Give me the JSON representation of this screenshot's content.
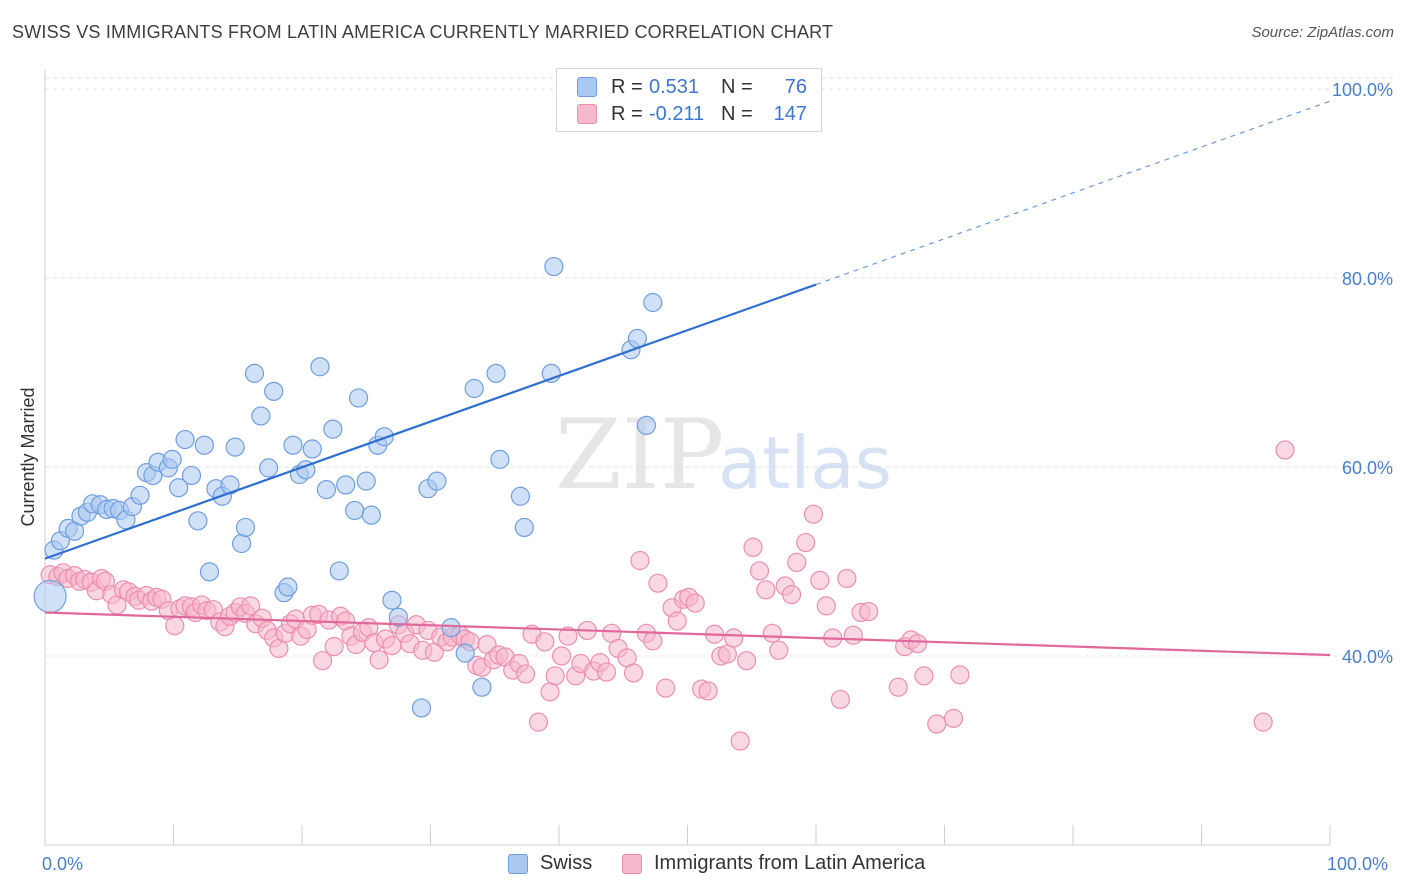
{
  "title": "SWISS VS IMMIGRANTS FROM LATIN AMERICA CURRENTLY MARRIED CORRELATION CHART",
  "source": "Source: ZipAtlas.com",
  "watermark": {
    "zip": "ZIP",
    "atlas": "atlas"
  },
  "legend": {
    "rows": [
      {
        "r_label": "R =",
        "r_value": "0.531",
        "n_label": "N =",
        "n_value": "76"
      },
      {
        "r_label": "R =",
        "r_value": "-0.211",
        "n_label": "N =",
        "n_value": "147"
      }
    ]
  },
  "bottom_legend": {
    "swiss": "Swiss",
    "latin": "Immigrants from Latin America"
  },
  "colors": {
    "swiss_fill": "#aac8f0",
    "swiss_stroke": "#6f9ee0",
    "swiss_line": "#2f6fd0",
    "latin_fill": "#f6b8cc",
    "latin_stroke": "#ec8fae",
    "latin_line": "#e0689a",
    "grid": "#e3e3e3",
    "axis_label": "#4a7fd0"
  },
  "chart_data": {
    "type": "scatter",
    "title": "SWISS VS IMMIGRANTS FROM LATIN AMERICA CURRENTLY MARRIED CORRELATION CHART",
    "xlabel": "",
    "ylabel": "Currently Married",
    "xlim": [
      0,
      100
    ],
    "ylim": [
      20,
      102
    ],
    "x_tick_labels": [
      "0.0%",
      "100.0%"
    ],
    "y_ticks": [
      40,
      60,
      80,
      100
    ],
    "y_tick_labels": [
      "40.0%",
      "60.0%",
      "80.0%",
      "100.0%"
    ],
    "grid": true,
    "legend_position": "top-center",
    "series": [
      {
        "name": "Swiss",
        "r": 0.531,
        "n": 76,
        "trend": {
          "x0": 0,
          "y0": 50.3,
          "x1": 60,
          "y1": 79.3,
          "dashed_to": 100,
          "dashed_y": 98.7
        },
        "points": [
          [
            0.4,
            46.3
          ],
          [
            0.7,
            51.2
          ],
          [
            1.2,
            52.2
          ],
          [
            1.8,
            53.5
          ],
          [
            2.3,
            53.2
          ],
          [
            2.8,
            54.8
          ],
          [
            3.3,
            55.2
          ],
          [
            3.7,
            56.1
          ],
          [
            4.3,
            56.0
          ],
          [
            4.8,
            55.5
          ],
          [
            5.3,
            55.6
          ],
          [
            5.8,
            55.4
          ],
          [
            6.3,
            54.4
          ],
          [
            6.8,
            55.8
          ],
          [
            7.4,
            57.0
          ],
          [
            7.9,
            59.4
          ],
          [
            8.4,
            59.1
          ],
          [
            8.8,
            60.5
          ],
          [
            9.6,
            59.9
          ],
          [
            9.9,
            60.8
          ],
          [
            10.4,
            57.8
          ],
          [
            10.9,
            62.9
          ],
          [
            11.4,
            59.1
          ],
          [
            11.9,
            54.3
          ],
          [
            12.4,
            62.3
          ],
          [
            12.8,
            48.9
          ],
          [
            13.3,
            57.7
          ],
          [
            13.8,
            56.9
          ],
          [
            14.4,
            58.1
          ],
          [
            14.8,
            62.1
          ],
          [
            15.3,
            51.9
          ],
          [
            15.6,
            53.6
          ],
          [
            16.3,
            69.9
          ],
          [
            16.8,
            65.4
          ],
          [
            17.4,
            59.9
          ],
          [
            17.8,
            68.0
          ],
          [
            18.6,
            46.7
          ],
          [
            18.9,
            47.3
          ],
          [
            19.3,
            62.3
          ],
          [
            19.8,
            59.2
          ],
          [
            20.3,
            59.7
          ],
          [
            20.8,
            61.9
          ],
          [
            21.4,
            70.6
          ],
          [
            21.9,
            57.6
          ],
          [
            22.4,
            64.0
          ],
          [
            22.9,
            49.0
          ],
          [
            23.4,
            58.1
          ],
          [
            24.1,
            55.4
          ],
          [
            24.4,
            67.3
          ],
          [
            25.0,
            58.5
          ],
          [
            25.4,
            54.9
          ],
          [
            25.9,
            62.3
          ],
          [
            26.4,
            63.2
          ],
          [
            27.0,
            45.9
          ],
          [
            27.5,
            44.1
          ],
          [
            29.3,
            34.5
          ],
          [
            29.8,
            57.7
          ],
          [
            30.5,
            58.5
          ],
          [
            31.6,
            43.0
          ],
          [
            32.7,
            40.3
          ],
          [
            33.4,
            68.3
          ],
          [
            34.0,
            36.7
          ],
          [
            35.1,
            69.9
          ],
          [
            35.4,
            60.8
          ],
          [
            37.0,
            56.9
          ],
          [
            37.3,
            53.6
          ],
          [
            39.4,
            69.9
          ],
          [
            39.6,
            81.2
          ],
          [
            45.6,
            72.4
          ],
          [
            46.1,
            73.6
          ],
          [
            46.8,
            64.4
          ],
          [
            47.3,
            77.4
          ],
          [
            43.0,
            100.0
          ],
          [
            51.4,
            100.2
          ],
          [
            52.6,
            99.9
          ],
          [
            53.1,
            100.0
          ]
        ]
      },
      {
        "name": "Immigrants from Latin America",
        "r": -0.211,
        "n": 147,
        "trend": {
          "x0": 0,
          "y0": 44.6,
          "x1": 100,
          "y1": 40.1
        },
        "points": [
          [
            0.4,
            48.6
          ],
          [
            1.0,
            48.4
          ],
          [
            1.4,
            48.8
          ],
          [
            1.8,
            48.2
          ],
          [
            2.3,
            48.5
          ],
          [
            2.7,
            47.9
          ],
          [
            3.1,
            48.1
          ],
          [
            3.6,
            47.8
          ],
          [
            4.0,
            46.9
          ],
          [
            4.4,
            48.2
          ],
          [
            4.7,
            47.9
          ],
          [
            5.2,
            46.5
          ],
          [
            5.6,
            45.4
          ],
          [
            6.1,
            47.0
          ],
          [
            6.5,
            46.8
          ],
          [
            7.0,
            46.3
          ],
          [
            7.3,
            45.9
          ],
          [
            7.9,
            46.4
          ],
          [
            8.3,
            45.8
          ],
          [
            8.7,
            46.2
          ],
          [
            9.1,
            46.0
          ],
          [
            9.6,
            44.8
          ],
          [
            10.1,
            43.2
          ],
          [
            10.5,
            45.0
          ],
          [
            10.9,
            45.3
          ],
          [
            11.4,
            45.2
          ],
          [
            11.7,
            44.6
          ],
          [
            12.2,
            45.4
          ],
          [
            12.6,
            44.8
          ],
          [
            13.1,
            44.9
          ],
          [
            13.6,
            43.6
          ],
          [
            14.0,
            43.1
          ],
          [
            14.4,
            44.2
          ],
          [
            14.8,
            44.6
          ],
          [
            15.2,
            45.2
          ],
          [
            15.6,
            44.5
          ],
          [
            16.0,
            45.3
          ],
          [
            16.4,
            43.4
          ],
          [
            16.9,
            44.0
          ],
          [
            17.3,
            42.7
          ],
          [
            17.8,
            41.9
          ],
          [
            18.2,
            40.8
          ],
          [
            18.7,
            42.4
          ],
          [
            19.1,
            43.4
          ],
          [
            19.5,
            43.9
          ],
          [
            19.9,
            42.1
          ],
          [
            20.4,
            42.8
          ],
          [
            20.8,
            44.3
          ],
          [
            21.3,
            44.4
          ],
          [
            21.6,
            39.5
          ],
          [
            22.1,
            43.8
          ],
          [
            22.5,
            41.0
          ],
          [
            23.0,
            44.2
          ],
          [
            23.4,
            43.7
          ],
          [
            23.8,
            42.1
          ],
          [
            24.2,
            41.2
          ],
          [
            24.7,
            42.5
          ],
          [
            25.2,
            43.0
          ],
          [
            25.6,
            41.4
          ],
          [
            26.0,
            39.6
          ],
          [
            26.5,
            41.8
          ],
          [
            27.0,
            41.1
          ],
          [
            27.5,
            43.3
          ],
          [
            28.0,
            42.4
          ],
          [
            28.4,
            41.3
          ],
          [
            28.9,
            43.3
          ],
          [
            29.4,
            40.6
          ],
          [
            29.8,
            42.7
          ],
          [
            30.3,
            40.4
          ],
          [
            30.8,
            42.0
          ],
          [
            31.3,
            41.5
          ],
          [
            31.7,
            42.0
          ],
          [
            32.3,
            42.2
          ],
          [
            32.7,
            41.8
          ],
          [
            33.1,
            41.5
          ],
          [
            33.6,
            39.0
          ],
          [
            34.0,
            38.8
          ],
          [
            34.4,
            41.2
          ],
          [
            34.9,
            39.6
          ],
          [
            35.3,
            40.1
          ],
          [
            35.8,
            39.9
          ],
          [
            36.4,
            38.5
          ],
          [
            36.9,
            39.2
          ],
          [
            37.4,
            38.1
          ],
          [
            37.9,
            42.3
          ],
          [
            38.4,
            33.0
          ],
          [
            38.9,
            41.5
          ],
          [
            39.3,
            36.2
          ],
          [
            39.7,
            37.9
          ],
          [
            40.2,
            40.0
          ],
          [
            40.7,
            42.1
          ],
          [
            41.3,
            37.9
          ],
          [
            41.7,
            39.2
          ],
          [
            42.2,
            42.7
          ],
          [
            42.7,
            38.4
          ],
          [
            43.2,
            39.3
          ],
          [
            43.7,
            38.3
          ],
          [
            44.1,
            42.4
          ],
          [
            44.6,
            40.8
          ],
          [
            45.3,
            39.8
          ],
          [
            45.8,
            38.2
          ],
          [
            46.3,
            50.1
          ],
          [
            46.8,
            42.4
          ],
          [
            47.3,
            41.6
          ],
          [
            47.7,
            47.7
          ],
          [
            48.3,
            36.6
          ],
          [
            48.8,
            45.1
          ],
          [
            49.2,
            43.7
          ],
          [
            49.7,
            46.0
          ],
          [
            50.1,
            46.2
          ],
          [
            50.6,
            45.6
          ],
          [
            51.1,
            36.5
          ],
          [
            51.6,
            36.3
          ],
          [
            52.1,
            42.3
          ],
          [
            52.6,
            40.0
          ],
          [
            53.1,
            40.2
          ],
          [
            53.6,
            41.9
          ],
          [
            54.1,
            31.0
          ],
          [
            54.6,
            39.5
          ],
          [
            55.1,
            51.5
          ],
          [
            55.6,
            49.0
          ],
          [
            56.1,
            47.0
          ],
          [
            56.6,
            42.4
          ],
          [
            57.1,
            40.6
          ],
          [
            57.6,
            47.4
          ],
          [
            58.1,
            46.5
          ],
          [
            58.5,
            49.9
          ],
          [
            59.2,
            52.0
          ],
          [
            59.8,
            55.0
          ],
          [
            60.3,
            48.0
          ],
          [
            60.8,
            45.3
          ],
          [
            61.3,
            41.9
          ],
          [
            61.9,
            35.4
          ],
          [
            62.4,
            48.2
          ],
          [
            62.9,
            42.2
          ],
          [
            63.5,
            44.6
          ],
          [
            64.1,
            44.7
          ],
          [
            66.4,
            36.7
          ],
          [
            66.9,
            41.0
          ],
          [
            67.4,
            41.7
          ],
          [
            67.9,
            41.3
          ],
          [
            68.4,
            37.9
          ],
          [
            69.4,
            32.8
          ],
          [
            70.7,
            33.4
          ],
          [
            71.2,
            38.0
          ],
          [
            94.8,
            33.0
          ],
          [
            96.5,
            61.8
          ]
        ]
      }
    ]
  }
}
